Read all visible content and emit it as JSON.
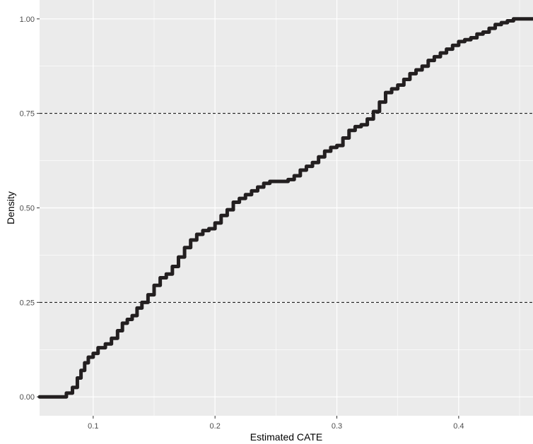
{
  "chart_data": {
    "type": "line",
    "title": "",
    "xlabel": "Estimated CATE",
    "ylabel": "Density",
    "xlim": [
      0.056,
      0.461
    ],
    "ylim": [
      -0.05,
      1.05
    ],
    "x_ticks": [
      0.1,
      0.2,
      0.3,
      0.4
    ],
    "x_tick_labels": [
      "0.1",
      "0.2",
      "0.3",
      "0.4"
    ],
    "y_ticks": [
      0.0,
      0.25,
      0.5,
      0.75,
      1.0
    ],
    "y_tick_labels": [
      "0.00",
      "0.25",
      "0.50",
      "0.75",
      "1.00"
    ],
    "grid": true,
    "legend": "none",
    "background_color": "#ebebeb",
    "grid_color": "#ffffff",
    "line_color": "#231f20",
    "reference_lines": [
      {
        "axis": "y",
        "value": 0.25,
        "style": "dashed"
      },
      {
        "axis": "y",
        "value": 0.75,
        "style": "dashed"
      }
    ],
    "series": [
      {
        "x": [
          0.056,
          0.073,
          0.078,
          0.083,
          0.087,
          0.09,
          0.093,
          0.096,
          0.1,
          0.104,
          0.11,
          0.115,
          0.12,
          0.124,
          0.128,
          0.132,
          0.136,
          0.14,
          0.145,
          0.15,
          0.155,
          0.16,
          0.165,
          0.17,
          0.175,
          0.18,
          0.185,
          0.19,
          0.195,
          0.2,
          0.205,
          0.21,
          0.215,
          0.22,
          0.225,
          0.23,
          0.235,
          0.24,
          0.245,
          0.25,
          0.255,
          0.26,
          0.265,
          0.27,
          0.275,
          0.28,
          0.285,
          0.29,
          0.295,
          0.3,
          0.305,
          0.31,
          0.315,
          0.32,
          0.325,
          0.33,
          0.335,
          0.34,
          0.345,
          0.35,
          0.355,
          0.36,
          0.365,
          0.37,
          0.375,
          0.38,
          0.385,
          0.39,
          0.395,
          0.4,
          0.405,
          0.41,
          0.415,
          0.42,
          0.425,
          0.43,
          0.435,
          0.44,
          0.445,
          0.45,
          0.461
        ],
        "y": [
          0.0,
          0.0,
          0.01,
          0.025,
          0.05,
          0.07,
          0.09,
          0.105,
          0.115,
          0.13,
          0.14,
          0.155,
          0.175,
          0.195,
          0.205,
          0.215,
          0.235,
          0.25,
          0.27,
          0.295,
          0.315,
          0.325,
          0.345,
          0.37,
          0.395,
          0.415,
          0.43,
          0.44,
          0.445,
          0.46,
          0.48,
          0.495,
          0.515,
          0.525,
          0.535,
          0.545,
          0.555,
          0.565,
          0.57,
          0.57,
          0.57,
          0.575,
          0.585,
          0.6,
          0.61,
          0.62,
          0.635,
          0.65,
          0.66,
          0.665,
          0.685,
          0.705,
          0.715,
          0.72,
          0.735,
          0.755,
          0.78,
          0.805,
          0.815,
          0.825,
          0.84,
          0.855,
          0.865,
          0.875,
          0.89,
          0.9,
          0.91,
          0.92,
          0.93,
          0.94,
          0.945,
          0.95,
          0.96,
          0.965,
          0.975,
          0.985,
          0.99,
          0.995,
          1.0,
          1.0,
          1.0
        ]
      }
    ]
  }
}
